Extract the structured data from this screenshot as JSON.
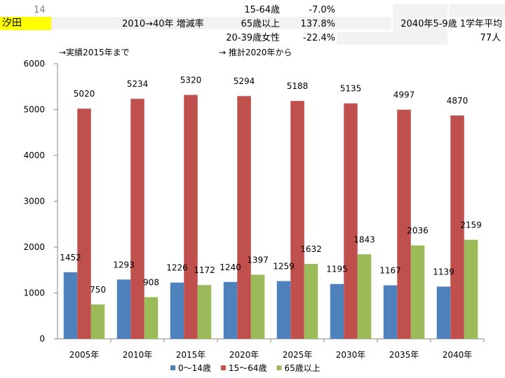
{
  "header": {
    "row_number": "14",
    "area_name": "汐田",
    "period_label": "2010→40年 増減率",
    "rows": [
      {
        "label": "15-64歳",
        "value": "-7.0%"
      },
      {
        "label": "65歳以上",
        "value": "137.8%"
      },
      {
        "label": "20-39歳女性",
        "value": "-22.4%"
      }
    ],
    "school_label": "2040年5-9歳 1学年平均",
    "school_value": "77人"
  },
  "notes": {
    "actual": "→実績2015年まで",
    "estimate": "→ 推計2020年から"
  },
  "colors": {
    "age0_14": "#4f81bd",
    "age15_64": "#c0504d",
    "age65": "#9bbb59"
  },
  "chart_data": {
    "type": "bar",
    "categories": [
      "2005年",
      "2010年",
      "2015年",
      "2020年",
      "2025年",
      "2030年",
      "2035年",
      "2040年"
    ],
    "series": [
      {
        "name": "0～14歳",
        "values": [
          1452,
          1293,
          1226,
          1240,
          1259,
          1195,
          1167,
          1139
        ]
      },
      {
        "name": "15～64歳",
        "values": [
          5020,
          5234,
          5320,
          5294,
          5188,
          5135,
          4997,
          4870
        ]
      },
      {
        "name": "65歳以上",
        "values": [
          750,
          908,
          1172,
          1397,
          1632,
          1843,
          2036,
          2159
        ]
      }
    ],
    "ylim": [
      0,
      6000
    ],
    "yticks": [
      0,
      1000,
      2000,
      3000,
      4000,
      5000,
      6000
    ],
    "grid": false,
    "legend": "bottom"
  }
}
